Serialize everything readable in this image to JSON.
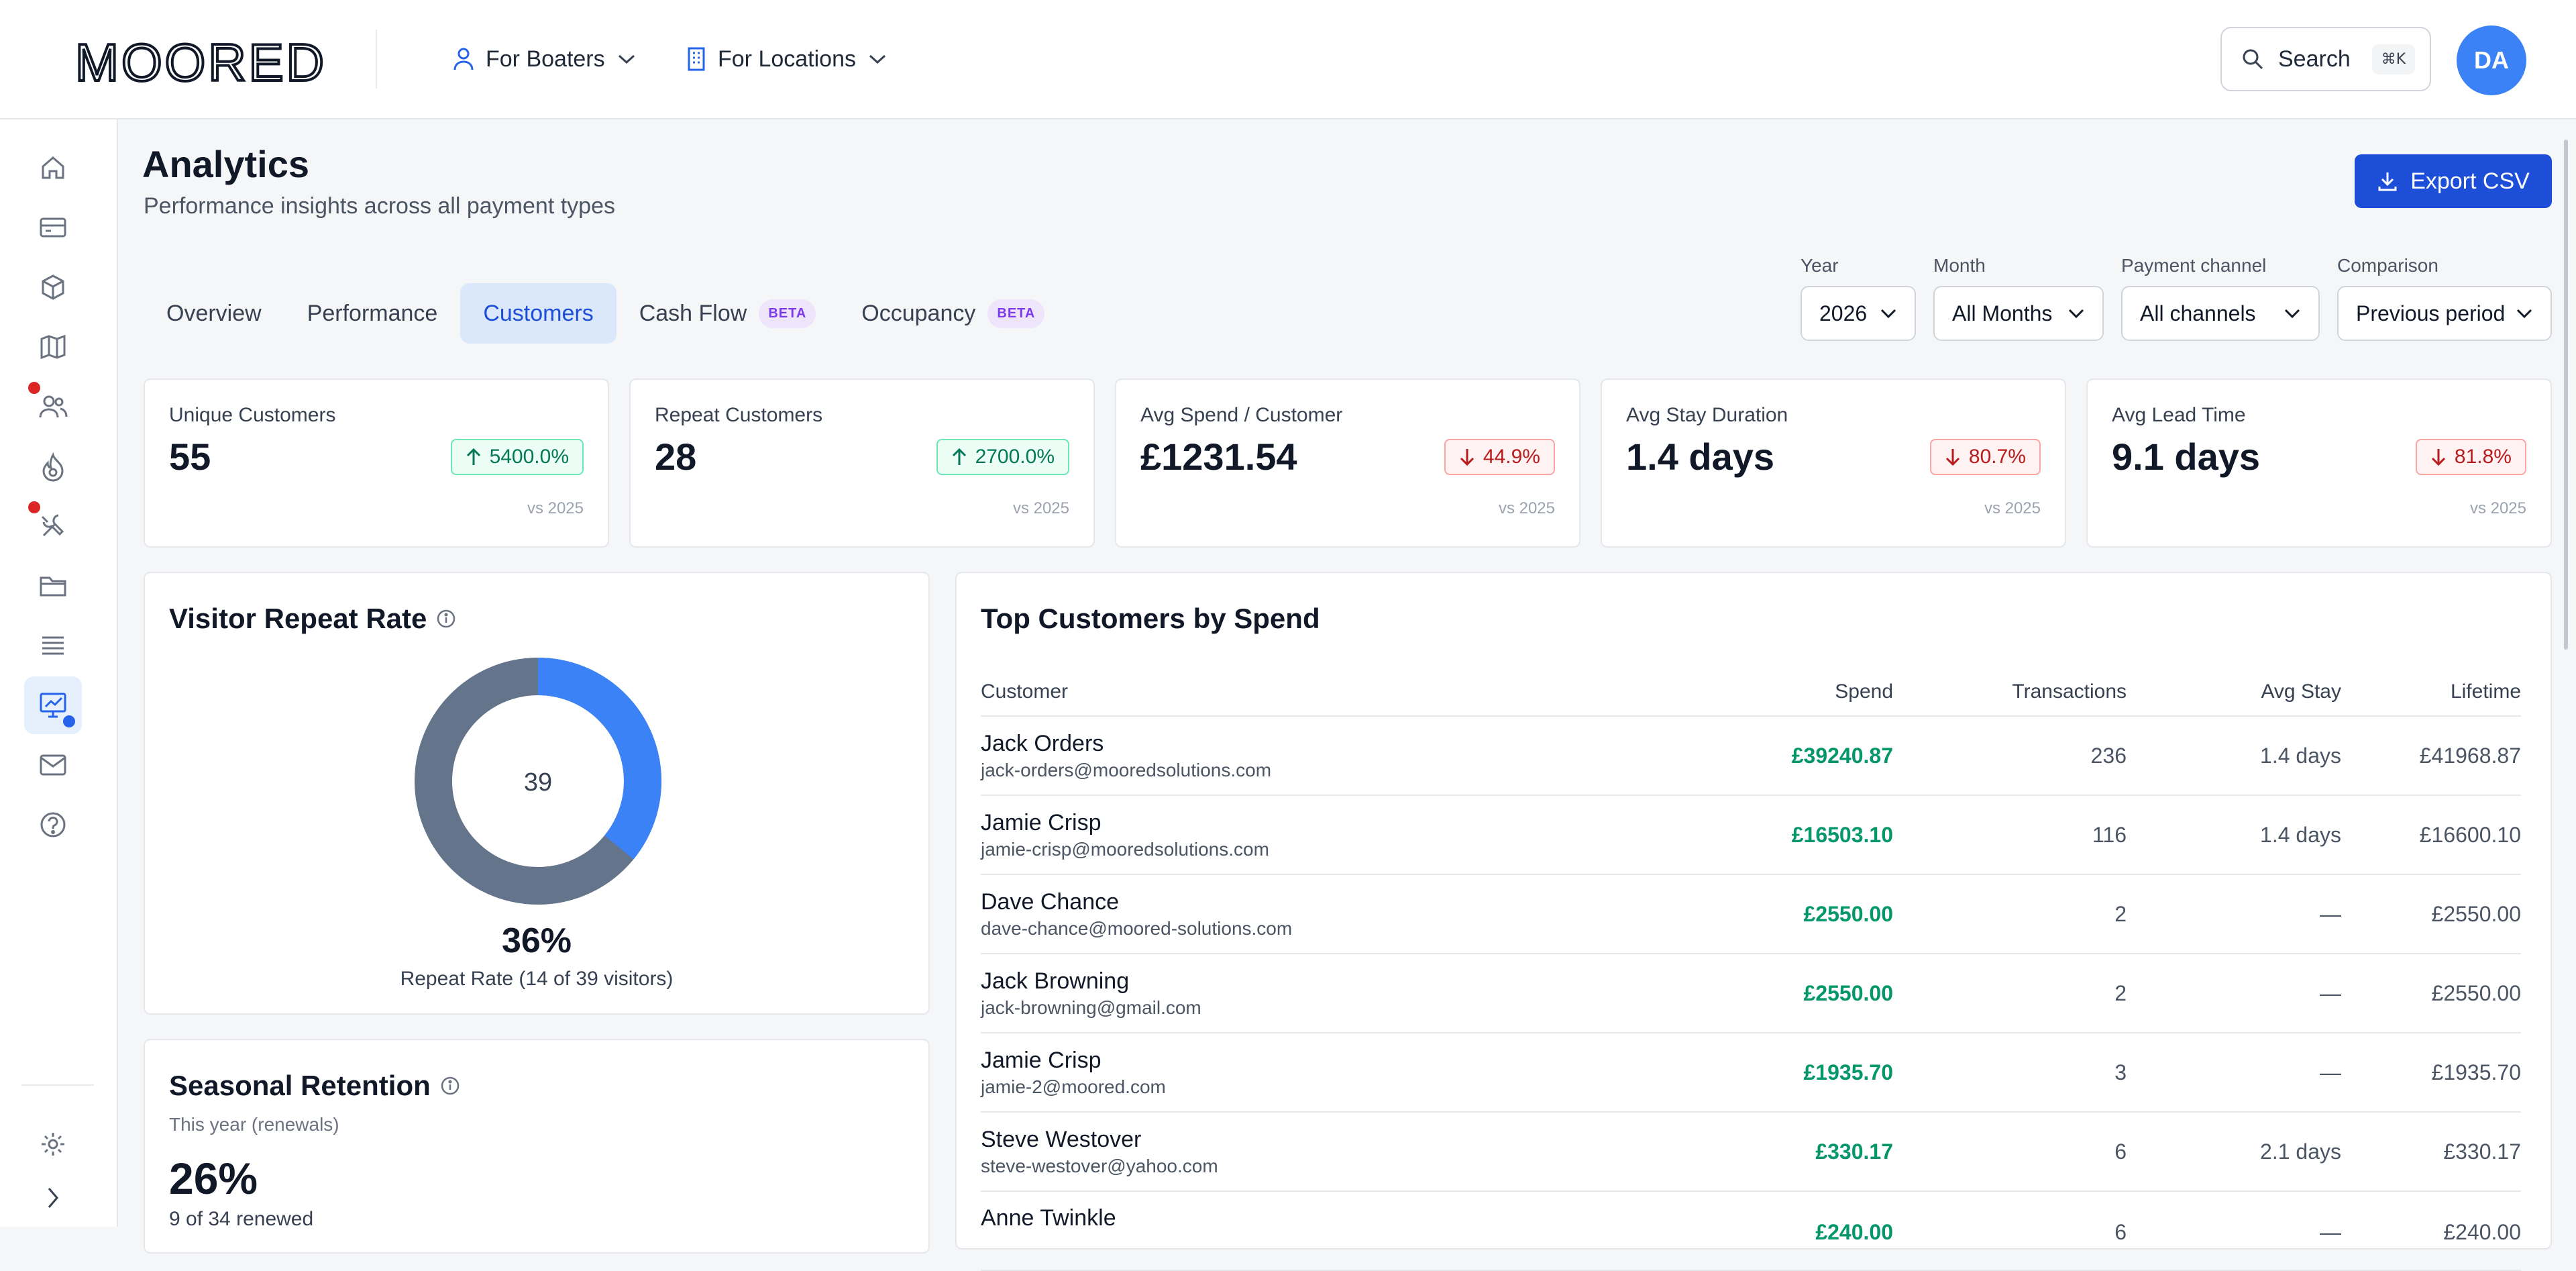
{
  "header": {
    "logo_text": "MOORED",
    "nav": [
      {
        "label": "For Boaters",
        "icon": "user-icon"
      },
      {
        "label": "For Locations",
        "icon": "building-icon"
      }
    ],
    "search_label": "Search",
    "search_shortcut": "⌘K",
    "avatar_initials": "DA"
  },
  "sidebar": {
    "items": [
      {
        "icon": "home-icon"
      },
      {
        "icon": "ticket-icon"
      },
      {
        "icon": "box-icon"
      },
      {
        "icon": "map-icon"
      },
      {
        "icon": "users-icon",
        "badge": "red"
      },
      {
        "icon": "fire-icon"
      },
      {
        "icon": "tools-icon",
        "badge": "red"
      },
      {
        "icon": "folder-icon"
      },
      {
        "icon": "list-icon"
      },
      {
        "icon": "analytics-icon",
        "active": true,
        "badge": "blue"
      },
      {
        "icon": "mail-icon"
      },
      {
        "icon": "help-icon"
      }
    ],
    "bottom": [
      {
        "icon": "settings-icon"
      },
      {
        "icon": "chevron-right-icon"
      }
    ]
  },
  "page": {
    "title": "Analytics",
    "subtitle": "Performance insights across all payment types",
    "export_label": "Export CSV"
  },
  "tabs": [
    {
      "label": "Overview"
    },
    {
      "label": "Performance"
    },
    {
      "label": "Customers",
      "active": true
    },
    {
      "label": "Cash Flow",
      "badge": "BETA"
    },
    {
      "label": "Occupancy",
      "badge": "BETA"
    }
  ],
  "filters": {
    "year": {
      "label": "Year",
      "value": "2026"
    },
    "month": {
      "label": "Month",
      "value": "All Months"
    },
    "channel": {
      "label": "Payment channel",
      "value": "All channels"
    },
    "comparison": {
      "label": "Comparison",
      "value": "Previous period"
    }
  },
  "kpis": [
    {
      "label": "Unique Customers",
      "value": "55",
      "change": "5400.0%",
      "direction": "up",
      "vs": "vs 2025"
    },
    {
      "label": "Repeat Customers",
      "value": "28",
      "change": "2700.0%",
      "direction": "up",
      "vs": "vs 2025"
    },
    {
      "label": "Avg Spend / Customer",
      "value": "£1231.54",
      "change": "44.9%",
      "direction": "down",
      "vs": "vs 2025"
    },
    {
      "label": "Avg Stay Duration",
      "value": "1.4 days",
      "change": "80.7%",
      "direction": "down",
      "vs": "vs 2025"
    },
    {
      "label": "Avg Lead Time",
      "value": "9.1 days",
      "change": "81.8%",
      "direction": "down",
      "vs": "vs 2025"
    }
  ],
  "repeat_rate": {
    "title": "Visitor Repeat Rate",
    "center_value": "39",
    "percent_label": "36%",
    "caption": "Repeat Rate (14 of 39 visitors)",
    "repeat": 14,
    "total": 39,
    "colors": {
      "repeat": "#3b82f6",
      "other": "#64748b"
    }
  },
  "seasonal": {
    "title": "Seasonal Retention",
    "subtitle": "This year (renewals)",
    "value": "26%",
    "caption": "9 of 34 renewed"
  },
  "top_customers": {
    "title": "Top Customers by Spend",
    "columns": {
      "customer": "Customer",
      "spend": "Spend",
      "transactions": "Transactions",
      "avg_stay": "Avg Stay",
      "lifetime": "Lifetime"
    },
    "rows": [
      {
        "name": "Jack Orders",
        "email": "jack-orders@mooredsolutions.com",
        "spend": "£39240.87",
        "transactions": "236",
        "avg_stay": "1.4 days",
        "lifetime": "£41968.87"
      },
      {
        "name": "Jamie Crisp",
        "email": "jamie-crisp@mooredsolutions.com",
        "spend": "£16503.10",
        "transactions": "116",
        "avg_stay": "1.4 days",
        "lifetime": "£16600.10"
      },
      {
        "name": "Dave Chance",
        "email": "dave-chance@moored-solutions.com",
        "spend": "£2550.00",
        "transactions": "2",
        "avg_stay": "—",
        "lifetime": "£2550.00"
      },
      {
        "name": "Jack Browning",
        "email": "jack-browning@gmail.com",
        "spend": "£2550.00",
        "transactions": "2",
        "avg_stay": "—",
        "lifetime": "£2550.00"
      },
      {
        "name": "Jamie Crisp",
        "email": "jamie-2@moored.com",
        "spend": "£1935.70",
        "transactions": "3",
        "avg_stay": "—",
        "lifetime": "£1935.70"
      },
      {
        "name": "Steve Westover",
        "email": "steve-westover@yahoo.com",
        "spend": "£330.17",
        "transactions": "6",
        "avg_stay": "2.1 days",
        "lifetime": "£330.17"
      },
      {
        "name": "Anne Twinkle",
        "email": "",
        "spend": "£240.00",
        "transactions": "6",
        "avg_stay": "—",
        "lifetime": "£240.00"
      }
    ]
  }
}
